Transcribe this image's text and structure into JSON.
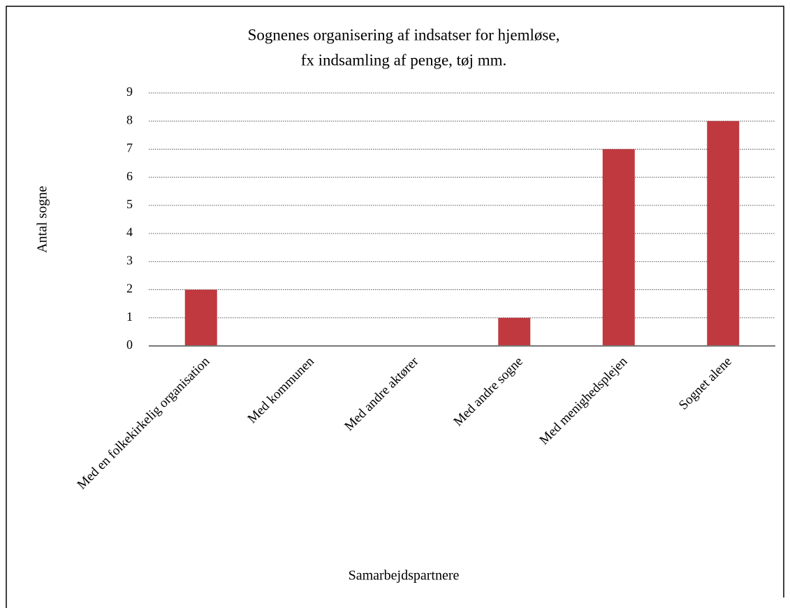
{
  "chart_data": {
    "type": "bar",
    "title": [
      "Sognenes organisering af indsatser for hjemløse,",
      "fx indsamling af penge, tøj mm."
    ],
    "x_label": "Samarbejdspartnere",
    "y_label": "Antal sogne",
    "categories": [
      "Med en folkekirkelig organisation",
      "Med kommunen",
      "Med andre aktører",
      "Med andre sogne",
      "Med menighedsplejen",
      "Sognet alene"
    ],
    "values": [
      2,
      0,
      0,
      1,
      7,
      8
    ],
    "color": "#c0393f",
    "ylim": [
      0,
      9
    ],
    "yticks": [
      0,
      1,
      2,
      3,
      4,
      5,
      6,
      7,
      8,
      9
    ],
    "grid": true
  }
}
